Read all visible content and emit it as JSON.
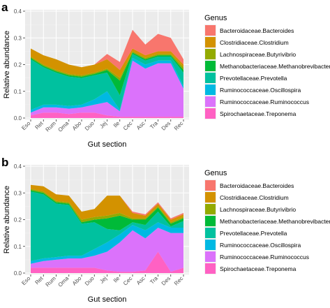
{
  "panels": [
    {
      "letter": "a"
    },
    {
      "letter": "b"
    }
  ],
  "chart_data": [
    {
      "type": "area",
      "stacked": true,
      "panel": "a",
      "categories": [
        "Eso",
        "Ret",
        "Rum",
        "Oma",
        "Abo",
        "Duo",
        "Jej",
        "Ile",
        "Cec",
        "Asc",
        "Tra",
        "Des",
        "Rec"
      ],
      "xlabel": "Gut section",
      "ylabel": "Relative abundance",
      "ylim": [
        0,
        0.4
      ],
      "yticks": [
        "0.0",
        "0.1",
        "0.2",
        "0.3",
        "0.4"
      ],
      "grid": true,
      "legend_title": "Genus",
      "legend_position": "right",
      "series": [
        {
          "name": "Spirochaetaceae.Treponema",
          "color": "#FF61C3",
          "values": [
            0.01,
            0.02,
            0.02,
            0.015,
            0.02,
            0.02,
            0.01,
            0.005,
            0.005,
            0.005,
            0.005,
            0.005,
            0.005
          ]
        },
        {
          "name": "Ruminococcaceae.Ruminococcus",
          "color": "#DB72FB",
          "values": [
            0.01,
            0.02,
            0.02,
            0.02,
            0.02,
            0.03,
            0.05,
            0.02,
            0.21,
            0.18,
            0.2,
            0.2,
            0.105
          ]
        },
        {
          "name": "Ruminococcaceae.Oscillospira",
          "color": "#00B9E3",
          "values": [
            0.01,
            0.01,
            0.01,
            0.01,
            0.01,
            0.02,
            0.04,
            0.005,
            0.01,
            0.015,
            0.01,
            0.01,
            0.01
          ]
        },
        {
          "name": "Prevotellaceae.Prevotella",
          "color": "#00C19F",
          "values": [
            0.19,
            0.14,
            0.12,
            0.11,
            0.1,
            0.09,
            0.07,
            0.055,
            0.015,
            0.015,
            0.015,
            0.015,
            0.05
          ]
        },
        {
          "name": "Methanobacteriaceae.Methanobrevibacter",
          "color": "#00BA38",
          "values": [
            0.005,
            0.005,
            0.005,
            0.005,
            0.005,
            0.005,
            0.01,
            0.055,
            0.005,
            0.005,
            0.005,
            0.005,
            0.01
          ]
        },
        {
          "name": "Lachnospiraceae.Butyrivibrio",
          "color": "#93AA00",
          "values": [
            0.005,
            0.005,
            0.005,
            0.005,
            0.005,
            0.005,
            0.005,
            0.01,
            0.005,
            0.005,
            0.005,
            0.005,
            0.01
          ]
        },
        {
          "name": "Clostridiaceae.Clostridium",
          "color": "#D39200",
          "values": [
            0.03,
            0.035,
            0.04,
            0.035,
            0.03,
            0.03,
            0.035,
            0.03,
            0.01,
            0.01,
            0.01,
            0.01,
            0.01
          ]
        },
        {
          "name": "Bacteroidaceae.Bacteroides",
          "color": "#F8766D",
          "values": [
            0.0,
            0.0,
            0.0,
            0.0,
            0.0,
            0.0,
            0.02,
            0.03,
            0.07,
            0.04,
            0.065,
            0.05,
            0.02
          ]
        }
      ]
    },
    {
      "type": "area",
      "stacked": true,
      "panel": "b",
      "categories": [
        "Eso",
        "Ret",
        "Rum",
        "Oma",
        "Abo",
        "Duo",
        "Jej",
        "Ile",
        "Cec",
        "Asc",
        "Tra",
        "Des",
        "Rec"
      ],
      "xlabel": "Gut section",
      "ylabel": "Relative abundance",
      "ylim": [
        0,
        0.4
      ],
      "yticks": [
        "0.0",
        "0.1",
        "0.2",
        "0.3",
        "0.4"
      ],
      "grid": true,
      "legend_title": "Genus",
      "legend_position": "right",
      "series": [
        {
          "name": "Spirochaetaceae.Treponema",
          "color": "#FF61C3",
          "values": [
            0.02,
            0.02,
            0.02,
            0.02,
            0.02,
            0.02,
            0.01,
            0.005,
            0.005,
            0.01,
            0.08,
            0.005,
            0.02
          ]
        },
        {
          "name": "Ruminococcaceae.Ruminococcus",
          "color": "#DB72FB",
          "values": [
            0.015,
            0.025,
            0.03,
            0.035,
            0.035,
            0.045,
            0.07,
            0.11,
            0.155,
            0.12,
            0.09,
            0.145,
            0.13
          ]
        },
        {
          "name": "Ruminococcaceae.Oscillospira",
          "color": "#00B9E3",
          "values": [
            0.01,
            0.01,
            0.01,
            0.01,
            0.01,
            0.025,
            0.035,
            0.03,
            0.02,
            0.03,
            0.02,
            0.02,
            0.02
          ]
        },
        {
          "name": "Prevotellaceae.Prevotella",
          "color": "#00C19F",
          "values": [
            0.26,
            0.24,
            0.2,
            0.19,
            0.12,
            0.1,
            0.05,
            0.015,
            0.01,
            0.02,
            0.04,
            0.005,
            0.025
          ]
        },
        {
          "name": "Methanobacteriaceae.Methanobrevibacter",
          "color": "#00BA38",
          "values": [
            0.005,
            0.005,
            0.005,
            0.005,
            0.005,
            0.01,
            0.04,
            0.055,
            0.01,
            0.02,
            0.015,
            0.01,
            0.01
          ]
        },
        {
          "name": "Lachnospiraceae.Butyrivibrio",
          "color": "#93AA00",
          "values": [
            0.005,
            0.005,
            0.005,
            0.005,
            0.01,
            0.01,
            0.01,
            0.01,
            0.005,
            0.005,
            0.005,
            0.005,
            0.005
          ]
        },
        {
          "name": "Clostridiaceae.Clostridium",
          "color": "#D39200",
          "values": [
            0.015,
            0.02,
            0.025,
            0.025,
            0.03,
            0.03,
            0.075,
            0.065,
            0.02,
            0.01,
            0.01,
            0.01,
            0.01
          ]
        },
        {
          "name": "Bacteroidaceae.Bacteroides",
          "color": "#F8766D",
          "values": [
            0.0,
            0.0,
            0.0,
            0.0,
            0.0,
            0.0,
            0.0,
            0.0,
            0.005,
            0.005,
            0.005,
            0.005,
            0.005
          ]
        }
      ]
    }
  ]
}
